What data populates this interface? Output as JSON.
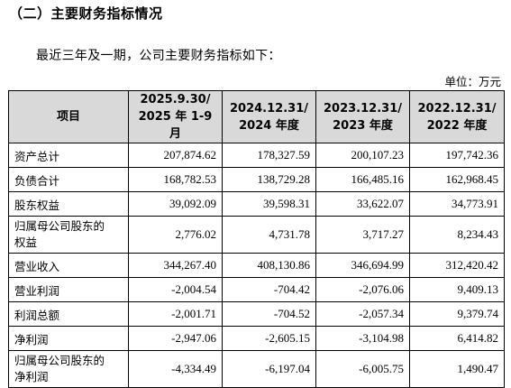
{
  "heading": "（二）主要财务指标情况",
  "intro": "最近三年及一期，公司主要财务指标如下：",
  "unit": "单位：万元",
  "table": {
    "item_header": "项目",
    "periods": [
      {
        "date": "2025.9.30/",
        "period": "2025 年 1-9 月"
      },
      {
        "date": "2024.12.31/",
        "period": "2024 年度"
      },
      {
        "date": "2023.12.31/",
        "period": "2023 年度"
      },
      {
        "date": "2022.12.31/",
        "period": "2022 年度"
      }
    ],
    "rows": [
      {
        "label": "资产总计",
        "values": [
          "207,874.62",
          "178,327.59",
          "200,107.23",
          "197,742.36"
        ]
      },
      {
        "label": "负债合计",
        "values": [
          "168,782.53",
          "138,729.28",
          "166,485.16",
          "162,968.45"
        ]
      },
      {
        "label": "股东权益",
        "values": [
          "39,092.09",
          "39,598.31",
          "33,622.07",
          "34,773.91"
        ]
      },
      {
        "label_line1": "归属母公司股东的",
        "label_line2": "权益",
        "values": [
          "2,776.02",
          "4,731.78",
          "3,717.27",
          "8,234.43"
        ]
      },
      {
        "label": "营业收入",
        "values": [
          "344,267.40",
          "408,130.86",
          "346,694.99",
          "312,420.42"
        ]
      },
      {
        "label": "营业利润",
        "values": [
          "-2,004.54",
          "-704.42",
          "-2,076.06",
          "9,409.13"
        ]
      },
      {
        "label": "利润总额",
        "values": [
          "-2,001.71",
          "-704.52",
          "-2,057.34",
          "9,379.74"
        ]
      },
      {
        "label": "净利润",
        "values": [
          "-2,947.06",
          "-2,605.15",
          "-3,104.98",
          "6,414.82"
        ]
      },
      {
        "label_line1": "归属母公司股东的",
        "label_line2": "净利润",
        "values": [
          "-4,334.49",
          "-6,197.04",
          "-6,005.75",
          "1,490.47"
        ]
      }
    ]
  }
}
